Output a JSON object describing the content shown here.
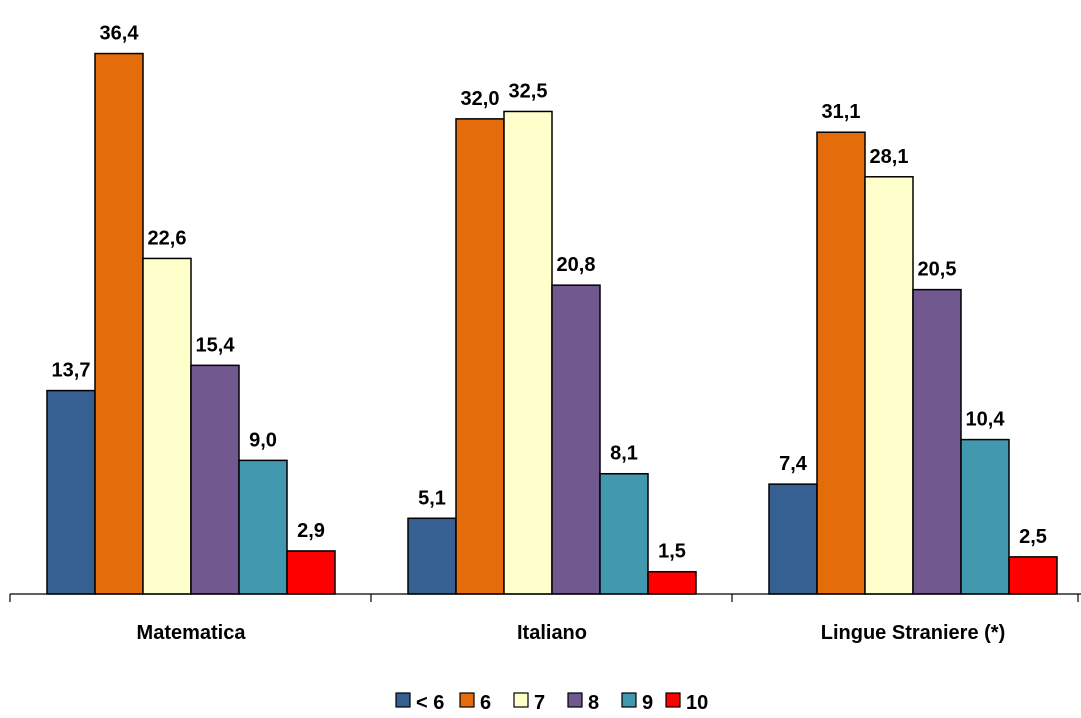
{
  "chart_data": {
    "type": "bar",
    "categories": [
      "Matematica",
      "Italiano",
      "Lingue Straniere (*)"
    ],
    "series": [
      {
        "name": "< 6",
        "values": [
          13.7,
          5.1,
          7.4
        ],
        "labels": [
          "13,7",
          "5,1",
          "7,4"
        ],
        "color": "#376092"
      },
      {
        "name": "6",
        "values": [
          36.4,
          32.0,
          31.1
        ],
        "labels": [
          "36,4",
          "32,0",
          "31,1"
        ],
        "color": "#E46C0A"
      },
      {
        "name": "7",
        "values": [
          22.6,
          32.5,
          28.1
        ],
        "labels": [
          "22,6",
          "32,5",
          "28,1"
        ],
        "color": "#FFFFCC"
      },
      {
        "name": "8",
        "values": [
          15.4,
          20.8,
          20.5
        ],
        "labels": [
          "15,4",
          "20,8",
          "20,5"
        ],
        "color": "#71588F"
      },
      {
        "name": "9",
        "values": [
          9.0,
          8.1,
          10.4
        ],
        "labels": [
          "9,0",
          "8,1",
          "10,4"
        ],
        "color": "#4198AF"
      },
      {
        "name": "10",
        "values": [
          2.9,
          1.5,
          2.5
        ],
        "labels": [
          "2,9",
          "1,5",
          "2,5"
        ],
        "color": "#FF0000"
      }
    ],
    "ylim": [
      0,
      40
    ],
    "legend_position": "bottom",
    "grid": false
  }
}
